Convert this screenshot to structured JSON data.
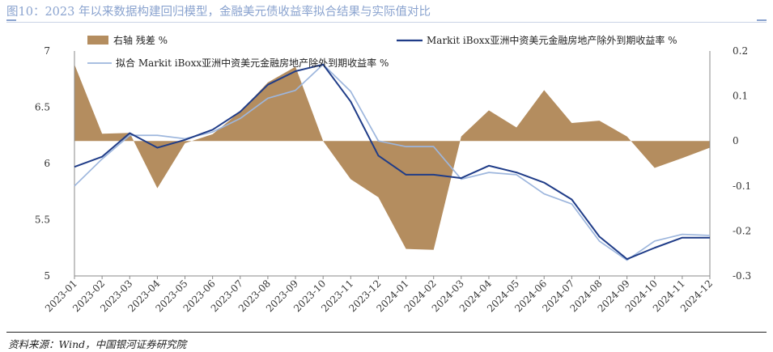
{
  "figure": {
    "title": "图10：2023 年以来数据构建回归模型，金融美元债收益率拟合结果与实际值对比",
    "source": "资料来源：Wind，中国银河证券研究院"
  },
  "chart_data": {
    "type": "line",
    "title": "",
    "x": [
      "2023-01",
      "2023-02",
      "2023-03",
      "2023-04",
      "2023-05",
      "2023-06",
      "2023-07",
      "2023-08",
      "2023-09",
      "2023-10",
      "2023-11",
      "2023-12",
      "2024-01",
      "2024-02",
      "2024-03",
      "2024-04",
      "2024-05",
      "2024-06",
      "2024-07",
      "2024-08",
      "2024-09",
      "2024-10",
      "2024-11",
      "2024-12"
    ],
    "left_axis": {
      "ylim": [
        5,
        7
      ],
      "ticks": [
        "5",
        "5.5",
        "6",
        "6.5",
        "7"
      ],
      "tick_values": [
        5,
        5.5,
        6,
        6.5,
        7
      ]
    },
    "right_axis": {
      "ylim": [
        -0.3,
        0.2
      ],
      "ticks": [
        "-0.3",
        "-0.2",
        "-0.1",
        "0",
        "0.1",
        "0.2"
      ],
      "tick_values": [
        -0.3,
        -0.2,
        -0.1,
        0,
        0.1,
        0.2
      ]
    },
    "legend_position": "top",
    "series": [
      {
        "name": "右轴 残差 %",
        "type": "area",
        "axis": "right",
        "color": "#b48d5f",
        "values": [
          0.17,
          0.016,
          0.018,
          -0.105,
          -0.005,
          0.015,
          0.065,
          0.13,
          0.165,
          0.0,
          -0.085,
          -0.125,
          -0.24,
          -0.242,
          0.01,
          0.068,
          0.03,
          0.113,
          0.04,
          0.045,
          0.01,
          -0.06,
          -0.038,
          -0.015
        ]
      },
      {
        "name": "Markit iBoxx亚洲中资美元金融房地产除外到期收益率 %",
        "type": "line",
        "axis": "left",
        "color": "#1f3c88",
        "values": [
          5.97,
          6.06,
          6.27,
          6.14,
          6.21,
          6.3,
          6.46,
          6.7,
          6.82,
          6.88,
          6.55,
          6.07,
          5.9,
          5.9,
          5.87,
          5.98,
          5.92,
          5.83,
          5.68,
          5.35,
          5.15,
          5.25,
          5.34,
          5.34
        ]
      },
      {
        "name": "拟合 Markit iBoxx亚洲中资美元金融房地产除外到期收益率 %",
        "type": "line",
        "axis": "left",
        "color": "#9db6dd",
        "values": [
          5.8,
          6.04,
          6.25,
          6.25,
          6.22,
          6.28,
          6.4,
          6.58,
          6.65,
          6.88,
          6.64,
          6.2,
          6.15,
          6.15,
          5.86,
          5.92,
          5.9,
          5.73,
          5.64,
          5.31,
          5.14,
          5.31,
          5.37,
          5.36
        ]
      }
    ]
  }
}
